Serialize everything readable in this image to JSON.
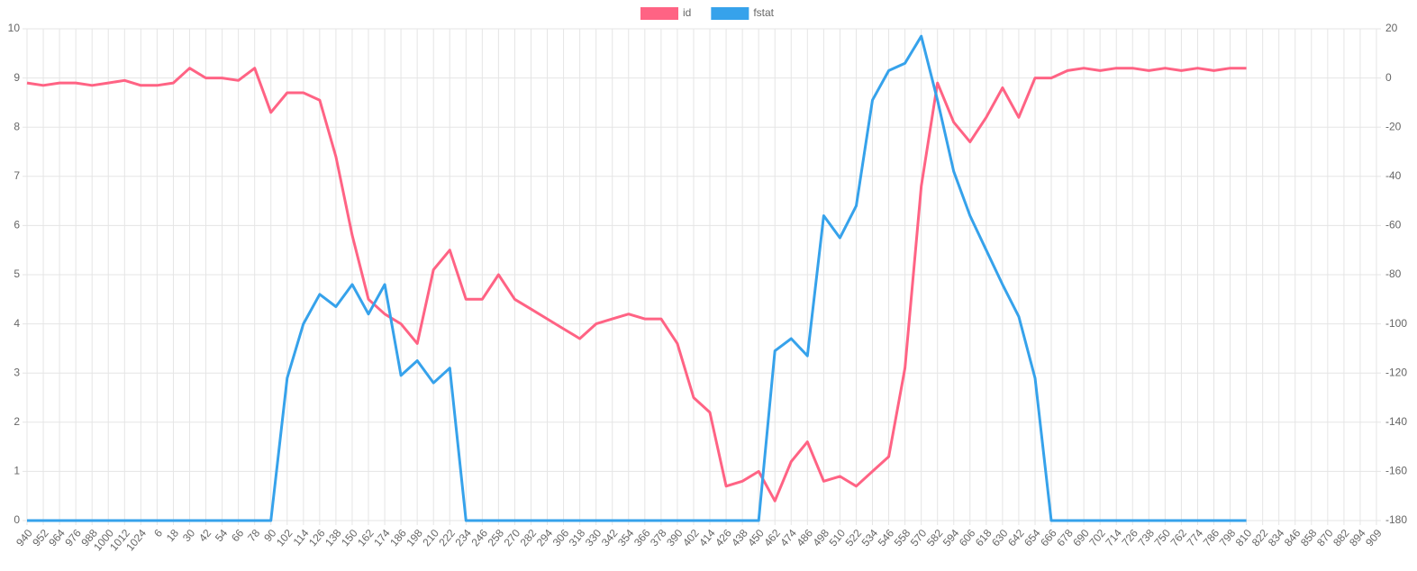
{
  "chart_data": {
    "type": "line",
    "categories": [
      "940",
      "952",
      "964",
      "976",
      "988",
      "1000",
      "1012",
      "1024",
      "6",
      "18",
      "30",
      "42",
      "54",
      "66",
      "78",
      "90",
      "102",
      "114",
      "126",
      "138",
      "150",
      "162",
      "174",
      "186",
      "198",
      "210",
      "222",
      "234",
      "246",
      "258",
      "270",
      "282",
      "294",
      "306",
      "318",
      "330",
      "342",
      "354",
      "366",
      "378",
      "390",
      "402",
      "414",
      "426",
      "438",
      "450",
      "462",
      "474",
      "486",
      "498",
      "510",
      "522",
      "534",
      "546",
      "558",
      "570",
      "582",
      "594",
      "606",
      "618",
      "630",
      "642",
      "654",
      "666",
      "678",
      "690",
      "702",
      "714",
      "726",
      "738",
      "750",
      "762",
      "774",
      "786",
      "798",
      "810",
      "822",
      "834",
      "846",
      "858",
      "870",
      "882",
      "894",
      "909"
    ],
    "series": [
      {
        "name": "id",
        "color": "#ff6384",
        "axis": "y",
        "values": [
          8.9,
          8.85,
          8.9,
          8.9,
          8.85,
          8.9,
          8.95,
          8.85,
          8.85,
          8.9,
          9.2,
          9.0,
          9.0,
          8.95,
          9.2,
          8.3,
          8.7,
          8.7,
          8.55,
          7.4,
          5.8,
          4.5,
          4.2,
          4.0,
          3.6,
          5.1,
          5.5,
          4.5,
          4.5,
          5.0,
          4.5,
          4.3,
          4.1,
          3.9,
          3.7,
          4.0,
          4.1,
          4.2,
          4.1,
          4.1,
          3.6,
          2.5,
          2.2,
          0.7,
          0.8,
          1.0,
          0.4,
          1.2,
          1.6,
          0.8,
          0.9,
          0.7,
          1.0,
          1.3,
          3.1,
          6.8,
          8.9,
          8.1,
          7.7,
          8.2,
          8.8,
          8.2,
          9.0,
          9.0,
          9.15,
          9.2,
          9.15,
          9.2,
          9.2,
          9.15,
          9.2,
          9.15,
          9.2,
          9.15,
          9.2,
          9.2,
          null,
          null,
          null,
          null,
          null,
          null,
          null,
          null
        ]
      },
      {
        "name": "fstat",
        "color": "#36a2eb",
        "axis": "y2",
        "values": [
          -180,
          -180,
          -180,
          -180,
          -180,
          -180,
          -180,
          -180,
          -180,
          -180,
          -180,
          -180,
          -180,
          -180,
          -180,
          -180,
          -122,
          -100,
          -88,
          -93,
          -84,
          -96,
          -84,
          -121,
          -115,
          -124,
          -118,
          -180,
          -180,
          -180,
          -180,
          -180,
          -180,
          -180,
          -180,
          -180,
          -180,
          -180,
          -180,
          -180,
          -180,
          -180,
          -180,
          -180,
          -180,
          -180,
          -111,
          -106,
          -113,
          -56,
          -65,
          -52,
          -9,
          3,
          6,
          17,
          -9,
          -38,
          -56,
          -70,
          -84,
          -97,
          -122,
          -180,
          -180,
          -180,
          -180,
          -180,
          -180,
          -180,
          -180,
          -180,
          -180,
          -180,
          -180,
          -180,
          null,
          null,
          null,
          null,
          null,
          null,
          null,
          null
        ]
      }
    ],
    "ylim": [
      0,
      10
    ],
    "yticks": [
      0,
      1,
      2,
      3,
      4,
      5,
      6,
      7,
      8,
      9,
      10
    ],
    "y2lim": [
      -180,
      20
    ],
    "y2ticks": [
      -180,
      -160,
      -140,
      -120,
      -100,
      -80,
      -60,
      -40,
      -20,
      0,
      20
    ],
    "grid": true,
    "legend": "top"
  }
}
